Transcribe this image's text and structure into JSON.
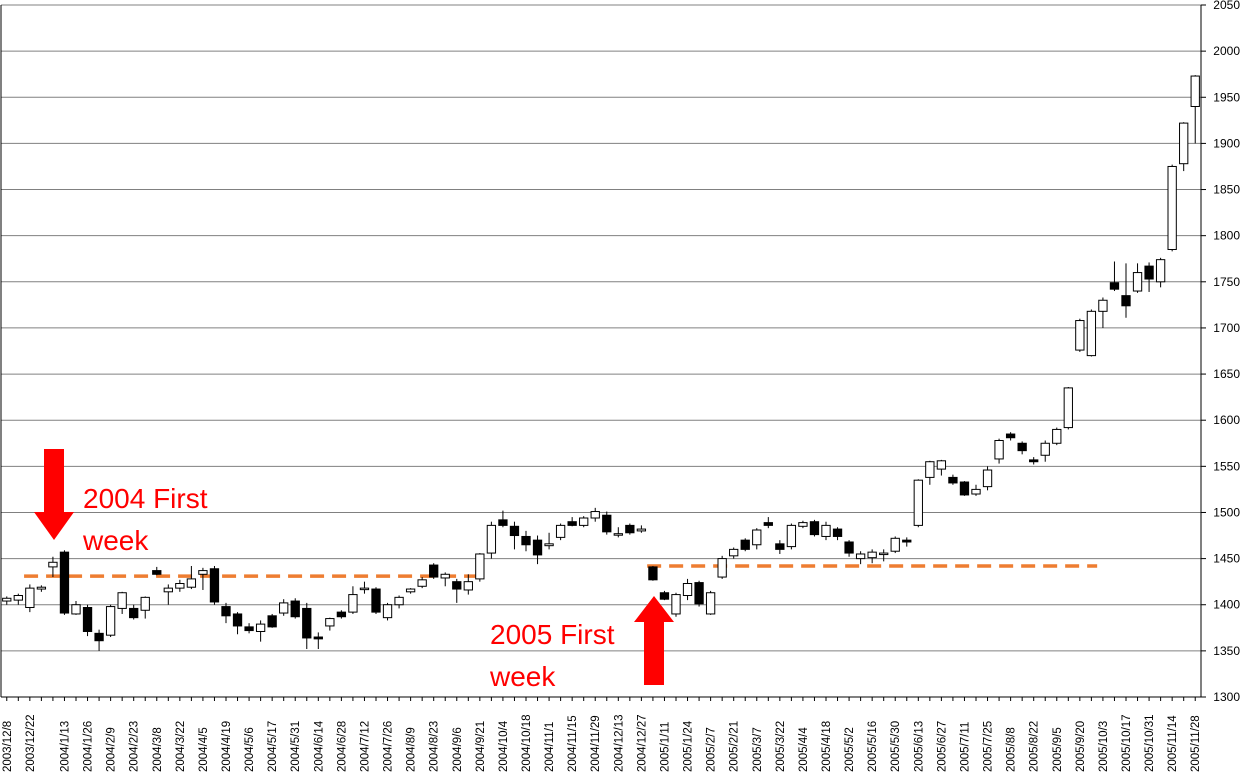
{
  "chart_data": {
    "type": "candlestick",
    "title": "",
    "xlabel": "",
    "ylabel": "",
    "ylim": [
      1300,
      2050
    ],
    "y_ticks": [
      1300,
      1350,
      1400,
      1450,
      1500,
      1550,
      1600,
      1650,
      1700,
      1750,
      1800,
      1850,
      1900,
      1950,
      2000,
      2050
    ],
    "y_axis_side": "right",
    "grid": "horizontal",
    "x_tick_labels": [
      "2003/12/8",
      "2003/12/22",
      "2004/1/13",
      "2004/1/26",
      "2004/2/9",
      "2004/2/23",
      "2004/3/8",
      "2004/3/22",
      "2004/4/5",
      "2004/4/19",
      "2004/5/6",
      "2004/5/17",
      "2004/5/31",
      "2004/6/14",
      "2004/6/28",
      "2004/7/12",
      "2004/7/26",
      "2004/8/9",
      "2004/8/23",
      "2004/9/6",
      "2004/9/21",
      "2004/10/4",
      "2004/10/18",
      "2004/11/1",
      "2004/11/15",
      "2004/11/29",
      "2004/12/13",
      "2004/12/27",
      "2005/1/11",
      "2005/1/24",
      "2005/2/7",
      "2005/2/21",
      "2005/3/7",
      "2005/3/22",
      "2005/4/4",
      "2005/4/18",
      "2005/5/2",
      "2005/5/16",
      "2005/5/30",
      "2005/6/13",
      "2005/6/27",
      "2005/7/11",
      "2005/7/25",
      "2005/8/8",
      "2005/8/22",
      "2005/9/5",
      "2005/9/20",
      "2005/10/3",
      "2005/10/17",
      "2005/10/31",
      "2005/11/14",
      "2005/11/28"
    ],
    "candles": [
      {
        "x": "2003/12/8",
        "o": 1404,
        "h": 1409,
        "l": 1400,
        "c": 1407
      },
      {
        "x": "2003/12/15",
        "o": 1405,
        "h": 1412,
        "l": 1400,
        "c": 1410
      },
      {
        "x": "2003/12/22",
        "o": 1397,
        "h": 1422,
        "l": 1392,
        "c": 1418
      },
      {
        "x": "2003/12/29",
        "o": 1417,
        "h": 1421,
        "l": 1414,
        "c": 1419
      },
      {
        "x": "2004/1/5",
        "o": 1441,
        "h": 1452,
        "l": 1430,
        "c": 1446
      },
      {
        "x": "2004/1/13",
        "o": 1457,
        "h": 1459,
        "l": 1389,
        "c": 1391
      },
      {
        "x": "2004/1/19",
        "o": 1390,
        "h": 1404,
        "l": 1389,
        "c": 1400
      },
      {
        "x": "2004/1/26",
        "o": 1397,
        "h": 1400,
        "l": 1366,
        "c": 1371
      },
      {
        "x": "2004/2/2",
        "o": 1369,
        "h": 1373,
        "l": 1350,
        "c": 1361
      },
      {
        "x": "2004/2/9",
        "o": 1367,
        "h": 1400,
        "l": 1365,
        "c": 1398
      },
      {
        "x": "2004/2/16",
        "o": 1396,
        "h": 1414,
        "l": 1390,
        "c": 1413
      },
      {
        "x": "2004/2/23",
        "o": 1396,
        "h": 1400,
        "l": 1384,
        "c": 1386
      },
      {
        "x": "2004/3/1",
        "o": 1394,
        "h": 1409,
        "l": 1385,
        "c": 1408
      },
      {
        "x": "2004/3/8",
        "o": 1437,
        "h": 1441,
        "l": 1432,
        "c": 1433
      },
      {
        "x": "2004/3/15",
        "o": 1414,
        "h": 1422,
        "l": 1400,
        "c": 1418
      },
      {
        "x": "2004/3/22",
        "o": 1418,
        "h": 1427,
        "l": 1414,
        "c": 1423
      },
      {
        "x": "2004/3/29",
        "o": 1419,
        "h": 1442,
        "l": 1417,
        "c": 1428
      },
      {
        "x": "2004/4/5",
        "o": 1433,
        "h": 1440,
        "l": 1416,
        "c": 1437
      },
      {
        "x": "2004/4/12",
        "o": 1439,
        "h": 1442,
        "l": 1400,
        "c": 1403
      },
      {
        "x": "2004/4/19",
        "o": 1398,
        "h": 1402,
        "l": 1380,
        "c": 1388
      },
      {
        "x": "2004/4/26",
        "o": 1390,
        "h": 1392,
        "l": 1368,
        "c": 1377
      },
      {
        "x": "2004/5/6",
        "o": 1376,
        "h": 1380,
        "l": 1369,
        "c": 1372
      },
      {
        "x": "2004/5/10",
        "o": 1371,
        "h": 1383,
        "l": 1360,
        "c": 1379
      },
      {
        "x": "2004/5/17",
        "o": 1388,
        "h": 1390,
        "l": 1375,
        "c": 1376
      },
      {
        "x": "2004/5/24",
        "o": 1391,
        "h": 1406,
        "l": 1388,
        "c": 1402
      },
      {
        "x": "2004/5/31",
        "o": 1404,
        "h": 1407,
        "l": 1385,
        "c": 1387
      },
      {
        "x": "2004/6/7",
        "o": 1396,
        "h": 1402,
        "l": 1352,
        "c": 1364
      },
      {
        "x": "2004/6/14",
        "o": 1365,
        "h": 1370,
        "l": 1352,
        "c": 1363
      },
      {
        "x": "2004/6/21",
        "o": 1377,
        "h": 1386,
        "l": 1372,
        "c": 1385
      },
      {
        "x": "2004/6/28",
        "o": 1392,
        "h": 1394,
        "l": 1385,
        "c": 1387
      },
      {
        "x": "2004/7/5",
        "o": 1392,
        "h": 1420,
        "l": 1390,
        "c": 1411
      },
      {
        "x": "2004/7/12",
        "o": 1417,
        "h": 1425,
        "l": 1412,
        "c": 1418
      },
      {
        "x": "2004/7/19",
        "o": 1417,
        "h": 1419,
        "l": 1390,
        "c": 1392
      },
      {
        "x": "2004/7/26",
        "o": 1386,
        "h": 1402,
        "l": 1383,
        "c": 1400
      },
      {
        "x": "2004/8/2",
        "o": 1400,
        "h": 1410,
        "l": 1396,
        "c": 1408
      },
      {
        "x": "2004/8/9",
        "o": 1414,
        "h": 1418,
        "l": 1412,
        "c": 1417
      },
      {
        "x": "2004/8/16",
        "o": 1420,
        "h": 1430,
        "l": 1418,
        "c": 1427
      },
      {
        "x": "2004/8/23",
        "o": 1443,
        "h": 1445,
        "l": 1428,
        "c": 1430
      },
      {
        "x": "2004/8/30",
        "o": 1429,
        "h": 1435,
        "l": 1420,
        "c": 1433
      },
      {
        "x": "2004/9/6",
        "o": 1425,
        "h": 1428,
        "l": 1402,
        "c": 1417
      },
      {
        "x": "2004/9/13",
        "o": 1416,
        "h": 1433,
        "l": 1411,
        "c": 1425
      },
      {
        "x": "2004/9/21",
        "o": 1428,
        "h": 1456,
        "l": 1425,
        "c": 1455
      },
      {
        "x": "2004/9/27",
        "o": 1456,
        "h": 1490,
        "l": 1450,
        "c": 1486
      },
      {
        "x": "2004/10/4",
        "o": 1492,
        "h": 1502,
        "l": 1484,
        "c": 1486
      },
      {
        "x": "2004/10/11",
        "o": 1485,
        "h": 1490,
        "l": 1460,
        "c": 1475
      },
      {
        "x": "2004/10/18",
        "o": 1474,
        "h": 1480,
        "l": 1458,
        "c": 1465
      },
      {
        "x": "2004/10/25",
        "o": 1470,
        "h": 1475,
        "l": 1444,
        "c": 1454
      },
      {
        "x": "2004/11/1",
        "o": 1464,
        "h": 1478,
        "l": 1460,
        "c": 1466
      },
      {
        "x": "2004/11/8",
        "o": 1473,
        "h": 1488,
        "l": 1470,
        "c": 1486
      },
      {
        "x": "2004/11/15",
        "o": 1490,
        "h": 1495,
        "l": 1485,
        "c": 1486
      },
      {
        "x": "2004/11/22",
        "o": 1486,
        "h": 1496,
        "l": 1484,
        "c": 1494
      },
      {
        "x": "2004/11/29",
        "o": 1494,
        "h": 1505,
        "l": 1490,
        "c": 1501
      },
      {
        "x": "2004/12/6",
        "o": 1497,
        "h": 1501,
        "l": 1476,
        "c": 1479
      },
      {
        "x": "2004/12/13",
        "o": 1476,
        "h": 1484,
        "l": 1473,
        "c": 1477
      },
      {
        "x": "2004/12/20",
        "o": 1486,
        "h": 1488,
        "l": 1476,
        "c": 1478
      },
      {
        "x": "2004/12/27",
        "o": 1480,
        "h": 1486,
        "l": 1478,
        "c": 1482
      },
      {
        "x": "2005/1/4",
        "o": 1441,
        "h": 1442,
        "l": 1426,
        "c": 1427
      },
      {
        "x": "2005/1/11",
        "o": 1413,
        "h": 1415,
        "l": 1405,
        "c": 1406
      },
      {
        "x": "2005/1/17",
        "o": 1390,
        "h": 1413,
        "l": 1387,
        "c": 1411
      },
      {
        "x": "2005/1/24",
        "o": 1410,
        "h": 1428,
        "l": 1405,
        "c": 1423
      },
      {
        "x": "2005/1/31",
        "o": 1424,
        "h": 1426,
        "l": 1398,
        "c": 1401
      },
      {
        "x": "2005/2/7",
        "o": 1390,
        "h": 1415,
        "l": 1389,
        "c": 1413
      },
      {
        "x": "2005/2/14",
        "o": 1430,
        "h": 1453,
        "l": 1428,
        "c": 1450
      },
      {
        "x": "2005/2/21",
        "o": 1453,
        "h": 1462,
        "l": 1450,
        "c": 1460
      },
      {
        "x": "2005/2/28",
        "o": 1470,
        "h": 1472,
        "l": 1458,
        "c": 1460
      },
      {
        "x": "2005/3/7",
        "o": 1465,
        "h": 1483,
        "l": 1460,
        "c": 1481
      },
      {
        "x": "2005/3/14",
        "o": 1489,
        "h": 1495,
        "l": 1483,
        "c": 1486
      },
      {
        "x": "2005/3/22",
        "o": 1466,
        "h": 1470,
        "l": 1455,
        "c": 1460
      },
      {
        "x": "2005/3/28",
        "o": 1463,
        "h": 1488,
        "l": 1460,
        "c": 1486
      },
      {
        "x": "2005/4/4",
        "o": 1485,
        "h": 1491,
        "l": 1483,
        "c": 1489
      },
      {
        "x": "2005/4/11",
        "o": 1490,
        "h": 1492,
        "l": 1474,
        "c": 1476
      },
      {
        "x": "2005/4/18",
        "o": 1474,
        "h": 1490,
        "l": 1470,
        "c": 1486
      },
      {
        "x": "2005/4/25",
        "o": 1482,
        "h": 1484,
        "l": 1470,
        "c": 1474
      },
      {
        "x": "2005/5/2",
        "o": 1468,
        "h": 1470,
        "l": 1452,
        "c": 1456
      },
      {
        "x": "2005/5/9",
        "o": 1450,
        "h": 1458,
        "l": 1444,
        "c": 1455
      },
      {
        "x": "2005/5/16",
        "o": 1451,
        "h": 1460,
        "l": 1445,
        "c": 1457
      },
      {
        "x": "2005/5/23",
        "o": 1455,
        "h": 1460,
        "l": 1447,
        "c": 1456
      },
      {
        "x": "2005/5/30",
        "o": 1458,
        "h": 1474,
        "l": 1456,
        "c": 1472
      },
      {
        "x": "2005/6/6",
        "o": 1470,
        "h": 1473,
        "l": 1463,
        "c": 1468
      },
      {
        "x": "2005/6/13",
        "o": 1486,
        "h": 1536,
        "l": 1484,
        "c": 1535
      },
      {
        "x": "2005/6/20",
        "o": 1538,
        "h": 1556,
        "l": 1530,
        "c": 1555
      },
      {
        "x": "2005/6/27",
        "o": 1547,
        "h": 1557,
        "l": 1540,
        "c": 1556
      },
      {
        "x": "2005/7/4",
        "o": 1538,
        "h": 1541,
        "l": 1530,
        "c": 1532
      },
      {
        "x": "2005/7/11",
        "o": 1533,
        "h": 1534,
        "l": 1518,
        "c": 1519
      },
      {
        "x": "2005/7/18",
        "o": 1520,
        "h": 1530,
        "l": 1518,
        "c": 1525
      },
      {
        "x": "2005/7/25",
        "o": 1528,
        "h": 1550,
        "l": 1524,
        "c": 1546
      },
      {
        "x": "2005/8/1",
        "o": 1558,
        "h": 1580,
        "l": 1553,
        "c": 1578
      },
      {
        "x": "2005/8/8",
        "o": 1585,
        "h": 1587,
        "l": 1578,
        "c": 1581
      },
      {
        "x": "2005/8/15",
        "o": 1575,
        "h": 1577,
        "l": 1563,
        "c": 1567
      },
      {
        "x": "2005/8/22",
        "o": 1557,
        "h": 1560,
        "l": 1552,
        "c": 1555
      },
      {
        "x": "2005/8/29",
        "o": 1562,
        "h": 1578,
        "l": 1555,
        "c": 1575
      },
      {
        "x": "2005/9/5",
        "o": 1575,
        "h": 1592,
        "l": 1573,
        "c": 1590
      },
      {
        "x": "2005/9/12",
        "o": 1592,
        "h": 1636,
        "l": 1590,
        "c": 1635
      },
      {
        "x": "2005/9/20",
        "o": 1676,
        "h": 1710,
        "l": 1674,
        "c": 1708
      },
      {
        "x": "2005/9/26",
        "o": 1670,
        "h": 1720,
        "l": 1669,
        "c": 1718
      },
      {
        "x": "2005/10/3",
        "o": 1718,
        "h": 1733,
        "l": 1700,
        "c": 1730
      },
      {
        "x": "2005/10/10",
        "o": 1749,
        "h": 1772,
        "l": 1740,
        "c": 1742
      },
      {
        "x": "2005/10/17",
        "o": 1735,
        "h": 1770,
        "l": 1711,
        "c": 1724
      },
      {
        "x": "2005/10/24",
        "o": 1740,
        "h": 1770,
        "l": 1738,
        "c": 1760
      },
      {
        "x": "2005/10/31",
        "o": 1767,
        "h": 1771,
        "l": 1739,
        "c": 1753
      },
      {
        "x": "2005/11/7",
        "o": 1750,
        "h": 1776,
        "l": 1744,
        "c": 1774
      },
      {
        "x": "2005/11/14",
        "o": 1785,
        "h": 1877,
        "l": 1783,
        "c": 1875
      },
      {
        "x": "2005/11/21",
        "o": 1878,
        "h": 1923,
        "l": 1870,
        "c": 1922
      },
      {
        "x": "2005/11/28",
        "o": 1940,
        "h": 1974,
        "l": 1900,
        "c": 1973
      }
    ],
    "reference_lines": [
      {
        "from": "2003/12/22",
        "to": "2004/9/21",
        "y": 1431,
        "color": "#ee7d31",
        "style": "dashed"
      },
      {
        "from": "2005/1/4",
        "to": "2005/9/26",
        "y": 1442,
        "color": "#ee7d31",
        "style": "dashed"
      }
    ],
    "annotations": [
      {
        "line1": "2004 First",
        "line2": "week",
        "arrow": "down",
        "target": "2004/1/13",
        "color": "#ff0000"
      },
      {
        "line1": "2005 First",
        "line2": "week",
        "arrow": "up",
        "target": "2005/1/4",
        "color": "#ff0000"
      }
    ],
    "colors": {
      "bullish": "#ffffff",
      "bearish": "#000000",
      "grid": "#808080",
      "reference": "#ee7d31",
      "annotation": "#ff0000"
    }
  }
}
